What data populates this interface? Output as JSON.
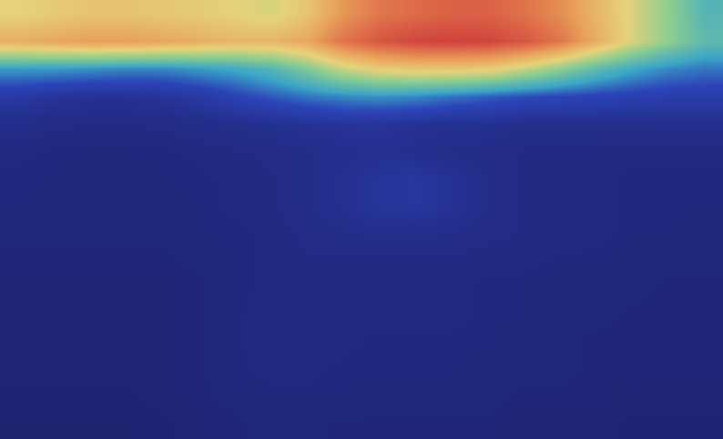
{
  "chart_data": {
    "type": "heatmap",
    "tick_labels": false,
    "zlim": [
      0,
      1
    ],
    "cells": [
      [
        0.62,
        0.64,
        0.66,
        0.66,
        0.65,
        0.64,
        0.62,
        0.6,
        0.66,
        0.78,
        0.85,
        0.88,
        0.9,
        0.9,
        0.86,
        0.8,
        0.7,
        0.6,
        0.5,
        0.4
      ],
      [
        0.72,
        0.74,
        0.76,
        0.76,
        0.74,
        0.72,
        0.7,
        0.7,
        0.74,
        0.86,
        0.93,
        0.97,
        0.98,
        0.97,
        0.93,
        0.85,
        0.72,
        0.6,
        0.5,
        0.42
      ],
      [
        0.34,
        0.34,
        0.33,
        0.32,
        0.32,
        0.34,
        0.36,
        0.4,
        0.48,
        0.58,
        0.64,
        0.66,
        0.66,
        0.64,
        0.58,
        0.5,
        0.42,
        0.36,
        0.32,
        0.3
      ],
      [
        0.2,
        0.18,
        0.17,
        0.17,
        0.18,
        0.2,
        0.24,
        0.27,
        0.3,
        0.32,
        0.33,
        0.32,
        0.3,
        0.28,
        0.26,
        0.25,
        0.24,
        0.23,
        0.22,
        0.22
      ],
      [
        0.14,
        0.13,
        0.12,
        0.12,
        0.13,
        0.14,
        0.15,
        0.16,
        0.17,
        0.18,
        0.18,
        0.17,
        0.16,
        0.16,
        0.15,
        0.15,
        0.15,
        0.15,
        0.15,
        0.15
      ],
      [
        0.11,
        0.1,
        0.1,
        0.1,
        0.1,
        0.11,
        0.12,
        0.13,
        0.14,
        0.15,
        0.16,
        0.15,
        0.14,
        0.13,
        0.12,
        0.12,
        0.12,
        0.11,
        0.11,
        0.11
      ],
      [
        0.1,
        0.1,
        0.09,
        0.09,
        0.1,
        0.1,
        0.11,
        0.12,
        0.14,
        0.16,
        0.18,
        0.19,
        0.17,
        0.14,
        0.12,
        0.11,
        0.11,
        0.1,
        0.1,
        0.1
      ],
      [
        0.1,
        0.09,
        0.09,
        0.09,
        0.09,
        0.1,
        0.11,
        0.12,
        0.14,
        0.16,
        0.18,
        0.19,
        0.17,
        0.14,
        0.12,
        0.11,
        0.11,
        0.1,
        0.1,
        0.1
      ],
      [
        0.09,
        0.09,
        0.09,
        0.09,
        0.09,
        0.1,
        0.1,
        0.11,
        0.13,
        0.14,
        0.15,
        0.15,
        0.14,
        0.13,
        0.12,
        0.12,
        0.11,
        0.1,
        0.1,
        0.09
      ],
      [
        0.08,
        0.08,
        0.08,
        0.08,
        0.08,
        0.09,
        0.1,
        0.11,
        0.12,
        0.12,
        0.12,
        0.12,
        0.12,
        0.11,
        0.11,
        0.1,
        0.1,
        0.09,
        0.09,
        0.09
      ],
      [
        0.07,
        0.07,
        0.07,
        0.07,
        0.07,
        0.08,
        0.1,
        0.11,
        0.11,
        0.11,
        0.11,
        0.11,
        0.11,
        0.1,
        0.1,
        0.09,
        0.09,
        0.09,
        0.08,
        0.08
      ],
      [
        0.07,
        0.07,
        0.07,
        0.07,
        0.07,
        0.08,
        0.1,
        0.12,
        0.12,
        0.11,
        0.11,
        0.11,
        0.11,
        0.1,
        0.1,
        0.09,
        0.09,
        0.08,
        0.08,
        0.08
      ],
      [
        0.07,
        0.07,
        0.07,
        0.07,
        0.07,
        0.08,
        0.1,
        0.12,
        0.12,
        0.11,
        0.1,
        0.1,
        0.1,
        0.1,
        0.09,
        0.09,
        0.08,
        0.08,
        0.08,
        0.08
      ],
      [
        0.07,
        0.07,
        0.07,
        0.07,
        0.07,
        0.08,
        0.1,
        0.11,
        0.11,
        0.1,
        0.1,
        0.1,
        0.1,
        0.09,
        0.09,
        0.09,
        0.08,
        0.08,
        0.08,
        0.08
      ],
      [
        0.06,
        0.06,
        0.06,
        0.06,
        0.07,
        0.08,
        0.09,
        0.1,
        0.1,
        0.1,
        0.09,
        0.09,
        0.09,
        0.09,
        0.08,
        0.08,
        0.08,
        0.07,
        0.07,
        0.07
      ],
      [
        0.05,
        0.05,
        0.05,
        0.05,
        0.06,
        0.07,
        0.08,
        0.09,
        0.09,
        0.08,
        0.08,
        0.08,
        0.08,
        0.08,
        0.07,
        0.07,
        0.07,
        0.06,
        0.06,
        0.06
      ]
    ]
  }
}
